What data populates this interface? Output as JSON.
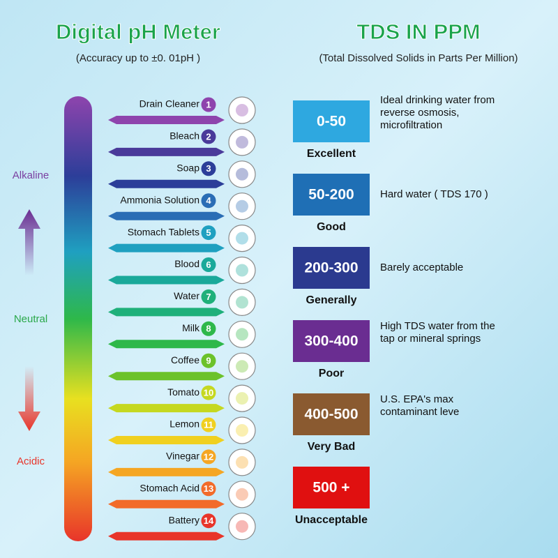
{
  "ph": {
    "title": "Digital pH Meter",
    "subtitle": "(Accuracy up to  ±0. 01pH )",
    "scale_labels": [
      {
        "text": "Alkaline",
        "color": "#7a3fa0"
      },
      {
        "text": "Neutral",
        "color": "#2aa84a"
      },
      {
        "text": "Acidic",
        "color": "#e8352a"
      }
    ],
    "items": [
      {
        "number": 1,
        "name": "Drain Cleaner",
        "color": "#8e44ad"
      },
      {
        "number": 2,
        "name": "Bleach",
        "color": "#4a3a9a"
      },
      {
        "number": 3,
        "name": "Soap",
        "color": "#2c3e99"
      },
      {
        "number": 4,
        "name": "Ammonia Solution",
        "color": "#2a6db5"
      },
      {
        "number": 5,
        "name": "Stomach Tablets",
        "color": "#1fa0c0"
      },
      {
        "number": 6,
        "name": "Blood",
        "color": "#1aa99a"
      },
      {
        "number": 7,
        "name": "Water",
        "color": "#1fb07a"
      },
      {
        "number": 8,
        "name": "Milk",
        "color": "#2eb84a"
      },
      {
        "number": 9,
        "name": "Coffee",
        "color": "#6cc22a"
      },
      {
        "number": 10,
        "name": "Tomato",
        "color": "#c5d820"
      },
      {
        "number": 11,
        "name": "Lemon",
        "color": "#f0d020"
      },
      {
        "number": 12,
        "name": "Vinegar",
        "color": "#f5a623"
      },
      {
        "number": 13,
        "name": "Stomach Acid",
        "color": "#f26b2a"
      },
      {
        "number": 14,
        "name": "Battery",
        "color": "#e8352a"
      }
    ]
  },
  "tds": {
    "title": "TDS IN PPM",
    "subtitle": "(Total Dissolved Solids in Parts Per Million)",
    "levels": [
      {
        "range": "0-50",
        "label": "Excellent",
        "color": "#2ea8e0",
        "description": [
          "Ideal drinking water from",
          "reverse osmosis,",
          "microfiltration"
        ]
      },
      {
        "range": "50-200",
        "label": "Good",
        "color": "#1f6fb5",
        "description": [
          "Hard water ( TDS 170 )"
        ]
      },
      {
        "range": "200-300",
        "label": "Generally",
        "color": "#2b3a8f",
        "description": [
          "Barely acceptable"
        ]
      },
      {
        "range": "300-400",
        "label": "Poor",
        "color": "#6a2d91",
        "description": [
          "High TDS water from the",
          "tap or mineral springs"
        ]
      },
      {
        "range": "400-500",
        "label": "Very Bad",
        "color": "#8a5a30",
        "description": [
          "U.S. EPA's max",
          "contaminant leve"
        ]
      },
      {
        "range": "500 +",
        "label": "Unacceptable",
        "color": "#e01010",
        "description": []
      }
    ]
  }
}
